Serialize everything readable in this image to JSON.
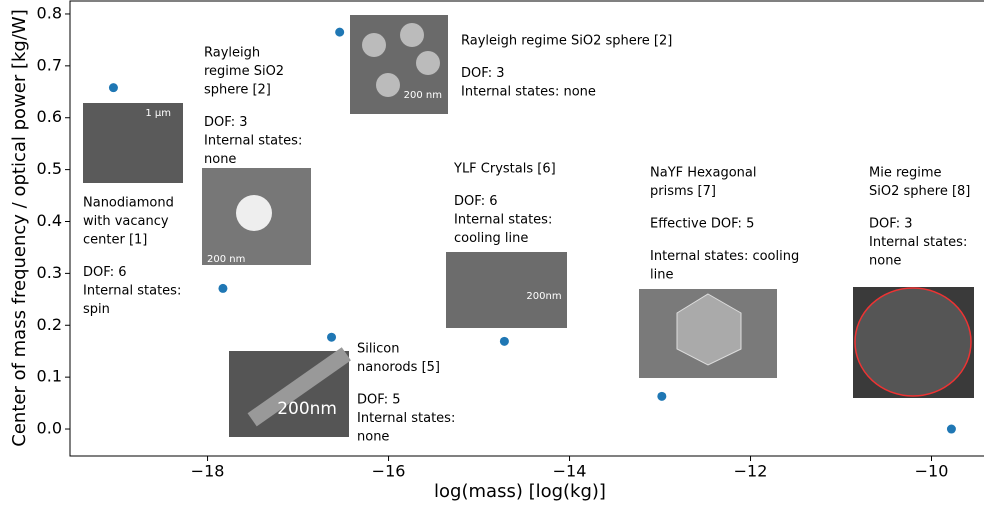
{
  "chart_data": {
    "type": "scatter",
    "x_label": "log(mass) [log(kg)]",
    "y_label": "Center of mass frequency / optical power [kg/W]",
    "x": [
      -19.04,
      -17.83,
      -16.54,
      -16.63,
      -14.72,
      -12.98,
      -9.78
    ],
    "values": [
      0.658,
      0.271,
      0.765,
      0.177,
      0.169,
      0.063,
      0.0
    ],
    "color": "#1f77b4",
    "xlim": [
      -19.52,
      -9.42
    ],
    "ylim": [
      -0.052,
      0.825
    ],
    "xticks": [
      {
        "value": -18,
        "label": "−18"
      },
      {
        "value": -16,
        "label": "−16"
      },
      {
        "value": -14,
        "label": "−14"
      },
      {
        "value": -12,
        "label": "−12"
      },
      {
        "value": -10,
        "label": "−10"
      }
    ],
    "yticks": [
      {
        "value": 0,
        "label": "0.0"
      },
      0.1,
      0.2,
      0.3,
      0.4,
      0.5,
      0.6,
      0.7,
      0.8
    ],
    "annotations": [
      {
        "paragraphs": [
          [
            "Nanodiamond",
            "with vacancy",
            "center [1]"
          ],
          [
            "DOF: 6",
            "Internal states:",
            "spin"
          ]
        ],
        "image_label": "1 μm"
      },
      {
        "paragraphs": [
          [
            "Rayleigh",
            "regime SiO2",
            "sphere [2]"
          ],
          [
            "DOF: 3",
            "Internal states:",
            "none"
          ]
        ],
        "image_label": "200 nm"
      },
      {
        "paragraphs": [
          [
            "Rayleigh regime SiO2 sphere [2]"
          ],
          [
            "DOF: 3",
            "Internal states: none"
          ]
        ],
        "image_label": "200 nm"
      },
      {
        "paragraphs": [
          [
            "Silicon",
            "nanorods [5]"
          ],
          [
            "DOF: 5",
            "Internal states:",
            "none"
          ]
        ],
        "image_label": "200nm"
      },
      {
        "paragraphs": [
          [
            "YLF Crystals [6]"
          ],
          [
            "DOF: 6",
            "Internal states:",
            "cooling line"
          ]
        ],
        "image_label": "200nm"
      },
      {
        "paragraphs": [
          [
            "NaYF Hexagonal",
            "prisms [7]"
          ],
          [
            "Effective DOF: 5"
          ],
          [
            "Internal states: cooling",
            "line"
          ]
        ]
      },
      {
        "paragraphs": [
          [
            "Mie regime",
            "SiO2 sphere [8]"
          ],
          [
            "DOF: 3",
            "Internal states:",
            "none"
          ]
        ]
      }
    ]
  }
}
